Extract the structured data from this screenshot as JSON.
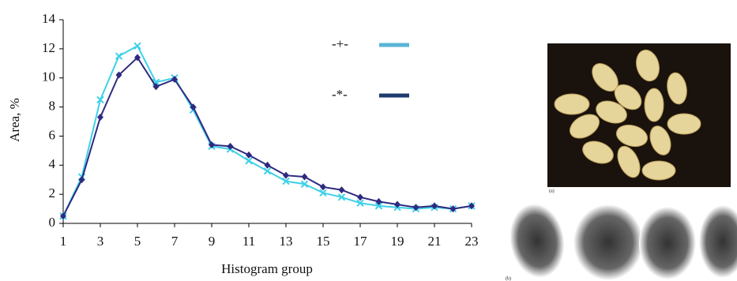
{
  "chart_data": {
    "type": "line",
    "ylabel": "Area, %",
    "xlabel": "Histogram group",
    "x": [
      1,
      2,
      3,
      4,
      5,
      6,
      7,
      8,
      9,
      10,
      11,
      12,
      13,
      14,
      15,
      16,
      17,
      18,
      19,
      20,
      21,
      22,
      23
    ],
    "series": [
      {
        "name": "-+-",
        "color": "#3fd0e8",
        "legend_color": "#5ab4d6",
        "marker": "x",
        "values": [
          0.5,
          3.2,
          8.5,
          11.5,
          12.2,
          9.7,
          10.0,
          7.8,
          5.3,
          5.1,
          4.3,
          3.6,
          2.9,
          2.7,
          2.1,
          1.8,
          1.4,
          1.2,
          1.1,
          1.0,
          1.1,
          1.0,
          1.2
        ]
      },
      {
        "name": "-*-",
        "color": "#2e2a80",
        "legend_color": "#1f3a6e",
        "marker": "diamond",
        "values": [
          0.5,
          3.0,
          7.3,
          10.2,
          11.4,
          9.4,
          9.9,
          8.0,
          5.4,
          5.3,
          4.7,
          4.0,
          3.3,
          3.2,
          2.5,
          2.3,
          1.8,
          1.5,
          1.3,
          1.1,
          1.2,
          1.0,
          1.2
        ]
      }
    ],
    "xlim": [
      1,
      23
    ],
    "xticks": [
      1,
      3,
      5,
      7,
      9,
      11,
      13,
      15,
      17,
      19,
      21,
      23
    ],
    "ylim": [
      0,
      14
    ],
    "yticks": [
      0,
      2,
      4,
      6,
      8,
      10,
      12,
      14
    ],
    "grid": false,
    "legend": "upper right"
  },
  "images": [
    {
      "label": "(a)"
    },
    {
      "label": "(b)"
    }
  ]
}
